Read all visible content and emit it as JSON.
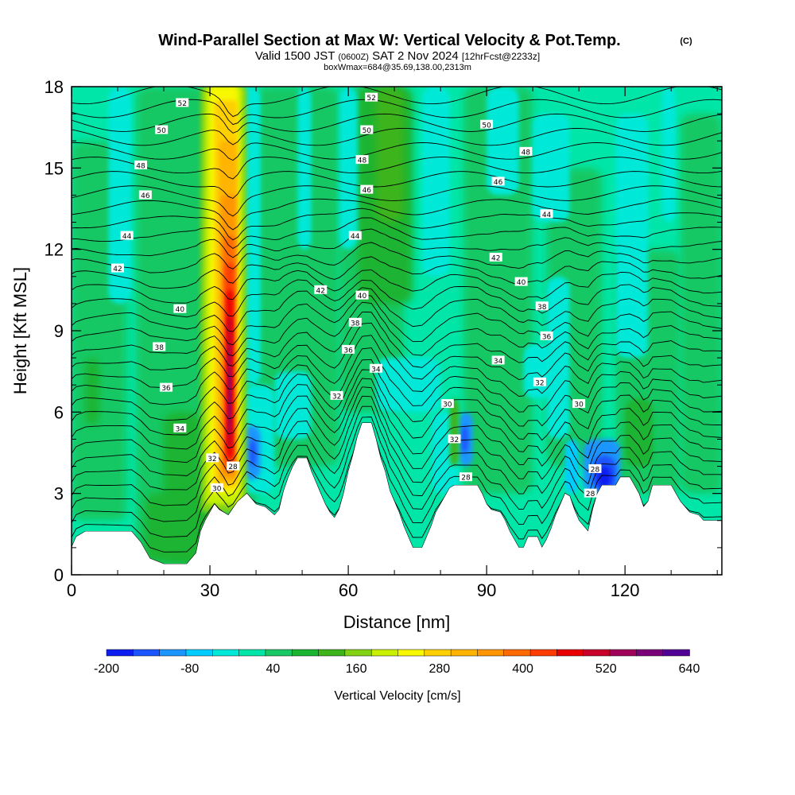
{
  "title": {
    "main": "Wind-Parallel Section at Max W: Vertical Velocity & Pot.Temp.",
    "main_suffix": "(C)",
    "valid_prefix": "Valid 1500 JST",
    "valid_zulu": "(0600Z)",
    "valid_date": "SAT 2 Nov 2024",
    "forecast_tag": "[12hrFcst@2233z]",
    "box_info": "boxWmax=684@35.69,138.00,2313m"
  },
  "chart_data": {
    "type": "heatmap",
    "xlabel": "Distance [nm]",
    "ylabel": "Height [Kft MSL]",
    "xlim": [
      0,
      141
    ],
    "ylim": [
      0,
      18
    ],
    "x_ticks": [
      0,
      30,
      60,
      90,
      120
    ],
    "y_ticks": [
      0,
      3,
      6,
      9,
      12,
      15,
      18
    ],
    "colorbar": {
      "title": "Vertical Velocity [cm/s]",
      "tick_labels": [
        "-200",
        "-80",
        "40",
        "160",
        "280",
        "400",
        "520",
        "640"
      ],
      "levels_cm_s": [
        -200,
        -160,
        -120,
        -80,
        -40,
        0,
        40,
        80,
        120,
        160,
        200,
        240,
        280,
        320,
        360,
        400,
        440,
        480,
        520,
        560,
        600,
        640
      ],
      "colors": [
        "#0c1ff0",
        "#1a55ff",
        "#1c96ff",
        "#00ccff",
        "#00e8d8",
        "#00e6a8",
        "#17c864",
        "#1ab432",
        "#3cb41a",
        "#82d214",
        "#c8f000",
        "#f8f800",
        "#ffd000",
        "#ffb400",
        "#ff9600",
        "#ff6a00",
        "#ff3c00",
        "#e80000",
        "#c8002a",
        "#a0005a",
        "#7a0078",
        "#500094"
      ]
    },
    "terrain_kft": [
      [
        0,
        1.0
      ],
      [
        1,
        1.4
      ],
      [
        3,
        1.6
      ],
      [
        8,
        1.6
      ],
      [
        13,
        1.6
      ],
      [
        15,
        1.2
      ],
      [
        17,
        0.6
      ],
      [
        20,
        0.4
      ],
      [
        25,
        0.4
      ],
      [
        27,
        0.8
      ],
      [
        28,
        1.6
      ],
      [
        29,
        2.0
      ],
      [
        30,
        2.3
      ],
      [
        31,
        2.6
      ],
      [
        32,
        2.4
      ],
      [
        34,
        2.2
      ],
      [
        36,
        2.7
      ],
      [
        38,
        3.0
      ],
      [
        40,
        2.6
      ],
      [
        42,
        2.5
      ],
      [
        44,
        2.2
      ],
      [
        45,
        2.4
      ],
      [
        46,
        3.1
      ],
      [
        47,
        3.6
      ],
      [
        48,
        4.0
      ],
      [
        49,
        4.3
      ],
      [
        51,
        4.3
      ],
      [
        52,
        3.8
      ],
      [
        53,
        3.4
      ],
      [
        54,
        3.0
      ],
      [
        55,
        2.6
      ],
      [
        56,
        2.3
      ],
      [
        57,
        2.1
      ],
      [
        58,
        2.4
      ],
      [
        59,
        3.0
      ],
      [
        60,
        3.8
      ],
      [
        61,
        4.4
      ],
      [
        62,
        5.1
      ],
      [
        63,
        5.6
      ],
      [
        65,
        5.6
      ],
      [
        66,
        5.0
      ],
      [
        67,
        4.3
      ],
      [
        68,
        3.8
      ],
      [
        69,
        3.1
      ],
      [
        70,
        2.7
      ],
      [
        71,
        2.3
      ],
      [
        72,
        1.8
      ],
      [
        73,
        1.4
      ],
      [
        74,
        1.0
      ],
      [
        76,
        1.0
      ],
      [
        77,
        1.4
      ],
      [
        78,
        1.8
      ],
      [
        79,
        2.3
      ],
      [
        80,
        2.6
      ],
      [
        81,
        2.9
      ],
      [
        82,
        3.2
      ],
      [
        83,
        3.3
      ],
      [
        88,
        3.3
      ],
      [
        89,
        3.0
      ],
      [
        90,
        2.6
      ],
      [
        91,
        2.4
      ],
      [
        93,
        2.3
      ],
      [
        94,
        2.0
      ],
      [
        95,
        1.6
      ],
      [
        96,
        1.3
      ],
      [
        97,
        1.0
      ],
      [
        98,
        1.0
      ],
      [
        99,
        1.4
      ],
      [
        101,
        1.4
      ],
      [
        102,
        1.0
      ],
      [
        103,
        1.3
      ],
      [
        104,
        1.7
      ],
      [
        105,
        2.2
      ],
      [
        106,
        2.6
      ],
      [
        107,
        3.0
      ],
      [
        108,
        2.9
      ],
      [
        109,
        2.4
      ],
      [
        110,
        2.0
      ],
      [
        111,
        1.8
      ],
      [
        112,
        1.6
      ],
      [
        113,
        2.4
      ],
      [
        114,
        3.0
      ],
      [
        115,
        3.3
      ],
      [
        117,
        3.3
      ],
      [
        118,
        3.3
      ],
      [
        119,
        3.6
      ],
      [
        121,
        3.6
      ],
      [
        122,
        3.3
      ],
      [
        123,
        3.0
      ],
      [
        124,
        2.5
      ],
      [
        125,
        2.7
      ],
      [
        126,
        3.3
      ],
      [
        130,
        3.3
      ],
      [
        131,
        3.0
      ],
      [
        132,
        2.7
      ],
      [
        134,
        2.3
      ],
      [
        136,
        2.2
      ],
      [
        137,
        2.0
      ],
      [
        141,
        2.0
      ]
    ],
    "theta_contour_labels": [
      {
        "value": "52",
        "x": 24,
        "y": 17.4
      },
      {
        "value": "50",
        "x": 19.5,
        "y": 16.4
      },
      {
        "value": "48",
        "x": 15,
        "y": 15.1
      },
      {
        "value": "46",
        "x": 16,
        "y": 14.0
      },
      {
        "value": "44",
        "x": 12,
        "y": 12.5
      },
      {
        "value": "42",
        "x": 10,
        "y": 11.3
      },
      {
        "value": "40",
        "x": 23.5,
        "y": 9.8
      },
      {
        "value": "38",
        "x": 19,
        "y": 8.4
      },
      {
        "value": "36",
        "x": 20.5,
        "y": 6.9
      },
      {
        "value": "34",
        "x": 23.5,
        "y": 5.4
      },
      {
        "value": "32",
        "x": 30.5,
        "y": 4.3
      },
      {
        "value": "30",
        "x": 31.5,
        "y": 3.2
      },
      {
        "value": "28",
        "x": 35,
        "y": 4.0
      },
      {
        "value": "52",
        "x": 65,
        "y": 17.6
      },
      {
        "value": "50",
        "x": 64,
        "y": 16.4
      },
      {
        "value": "48",
        "x": 63,
        "y": 15.3
      },
      {
        "value": "46",
        "x": 64,
        "y": 14.2
      },
      {
        "value": "44",
        "x": 61.5,
        "y": 12.5
      },
      {
        "value": "42",
        "x": 54,
        "y": 10.5
      },
      {
        "value": "40",
        "x": 63,
        "y": 10.3
      },
      {
        "value": "38",
        "x": 61.5,
        "y": 9.3
      },
      {
        "value": "36",
        "x": 60,
        "y": 8.3
      },
      {
        "value": "34",
        "x": 66,
        "y": 7.6
      },
      {
        "value": "32",
        "x": 57.5,
        "y": 6.6
      },
      {
        "value": "30",
        "x": 81.5,
        "y": 6.3
      },
      {
        "value": "32",
        "x": 83,
        "y": 5.0
      },
      {
        "value": "28",
        "x": 85.5,
        "y": 3.6
      },
      {
        "value": "50",
        "x": 90,
        "y": 16.6
      },
      {
        "value": "48",
        "x": 98.5,
        "y": 15.6
      },
      {
        "value": "46",
        "x": 92.5,
        "y": 14.5
      },
      {
        "value": "44",
        "x": 103,
        "y": 13.3
      },
      {
        "value": "42",
        "x": 92,
        "y": 11.7
      },
      {
        "value": "40",
        "x": 97.5,
        "y": 10.8
      },
      {
        "value": "38",
        "x": 102,
        "y": 9.9
      },
      {
        "value": "36",
        "x": 103,
        "y": 8.8
      },
      {
        "value": "34",
        "x": 92.5,
        "y": 7.9
      },
      {
        "value": "32",
        "x": 101.5,
        "y": 7.1
      },
      {
        "value": "30",
        "x": 110,
        "y": 6.3
      },
      {
        "value": "28",
        "x": 113.5,
        "y": 3.9
      },
      {
        "value": "28",
        "x": 112.5,
        "y": 3.0
      }
    ]
  }
}
